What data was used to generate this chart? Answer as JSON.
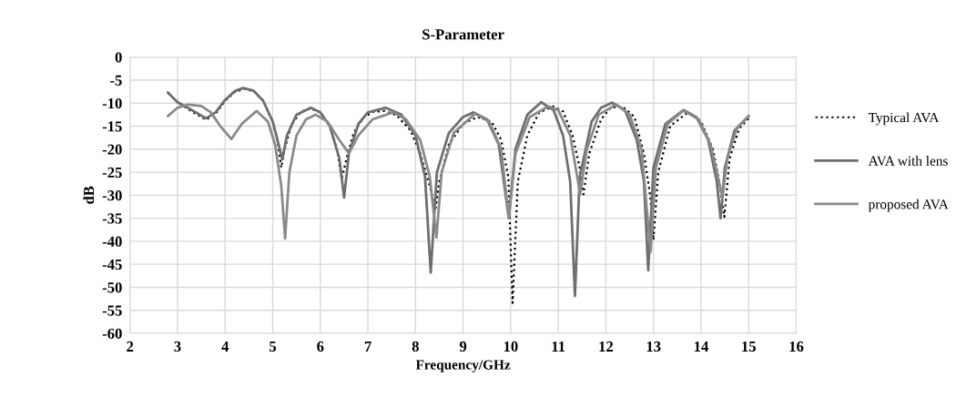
{
  "chart_data": {
    "type": "line",
    "title": "S-Parameter",
    "xlabel": "Frequency/GHz",
    "ylabel": "dB",
    "xlim": [
      2,
      16
    ],
    "xticks": [
      2,
      3,
      4,
      5,
      6,
      7,
      8,
      9,
      10,
      11,
      12,
      13,
      14,
      15,
      16
    ],
    "ylim": [
      -60,
      0
    ],
    "yticks": [
      -60,
      -55,
      -50,
      -45,
      -40,
      -35,
      -30,
      -25,
      -20,
      -15,
      -10,
      -5,
      0
    ],
    "grid": true,
    "legend": "right",
    "marker": "none",
    "series": [
      {
        "name": "Typical AVA",
        "color": "#000000",
        "line_style": "dotted",
        "x": [
          2.8,
          3.0,
          3.3,
          3.6,
          3.8,
          4.0,
          4.2,
          4.4,
          4.6,
          4.8,
          5.0,
          5.1,
          5.18,
          5.25,
          5.4,
          5.6,
          5.8,
          6.0,
          6.2,
          6.35,
          6.45,
          6.55,
          6.7,
          6.9,
          7.1,
          7.35,
          7.6,
          7.9,
          8.1,
          8.3,
          8.42,
          8.5,
          8.7,
          9.0,
          9.3,
          9.6,
          9.8,
          9.95,
          10.04,
          10.15,
          10.35,
          10.6,
          10.9,
          11.1,
          11.3,
          11.45,
          11.53,
          11.65,
          11.9,
          12.1,
          12.35,
          12.6,
          12.8,
          12.93,
          13.0,
          13.1,
          13.35,
          13.72,
          14.0,
          14.25,
          14.4,
          14.49,
          14.6,
          14.8,
          15.0
        ],
        "values": [
          -7.8,
          -9.8,
          -11.8,
          -13.6,
          -12.3,
          -9.5,
          -7.6,
          -6.9,
          -7.4,
          -9.5,
          -14,
          -18,
          -24,
          -20,
          -14.5,
          -11.8,
          -11.2,
          -12,
          -15,
          -20,
          -26.5,
          -22,
          -16.5,
          -13.2,
          -11.9,
          -11.7,
          -12.6,
          -16,
          -21,
          -28,
          -33,
          -27,
          -19,
          -14.5,
          -13,
          -14,
          -18,
          -26,
          -53.4,
          -27,
          -17,
          -12,
          -10.7,
          -11.8,
          -17,
          -24,
          -29.8,
          -21,
          -13.5,
          -11,
          -10.7,
          -13,
          -21,
          -30,
          -39.7,
          -25,
          -15,
          -12,
          -14,
          -20,
          -28,
          -34.7,
          -22,
          -15.5,
          -13.3
        ]
      },
      {
        "name": "AVA with lens",
        "color": "#6e6e6e",
        "line_style": "solid",
        "x": [
          2.8,
          3.0,
          3.3,
          3.6,
          3.8,
          4.0,
          4.2,
          4.38,
          4.6,
          4.8,
          5.0,
          5.1,
          5.2,
          5.3,
          5.5,
          5.8,
          6.0,
          6.2,
          6.4,
          6.5,
          6.6,
          6.8,
          7.0,
          7.37,
          7.7,
          8.0,
          8.2,
          8.32,
          8.45,
          8.7,
          9.0,
          9.22,
          9.5,
          9.75,
          9.96,
          10.1,
          10.35,
          10.64,
          10.9,
          11.1,
          11.25,
          11.35,
          11.45,
          11.7,
          11.9,
          12.13,
          12.4,
          12.65,
          12.8,
          12.89,
          13.0,
          13.25,
          13.63,
          13.9,
          14.15,
          14.33,
          14.41,
          14.5,
          14.7,
          15.0
        ],
        "values": [
          -7.7,
          -9.8,
          -11.5,
          -13.3,
          -12,
          -9.3,
          -7.4,
          -6.7,
          -7.3,
          -9.5,
          -14,
          -18,
          -22.2,
          -17,
          -12.5,
          -11,
          -12,
          -15,
          -22,
          -30.5,
          -21,
          -14.5,
          -12,
          -11,
          -12.5,
          -17,
          -26,
          -46.8,
          -25,
          -16.5,
          -13,
          -12,
          -13.5,
          -19,
          -35,
          -20,
          -12.5,
          -9.8,
          -11.5,
          -17,
          -27,
          -51.9,
          -26,
          -14,
          -11,
          -9.9,
          -11.5,
          -18,
          -27,
          -46.3,
          -24,
          -14.5,
          -11.5,
          -13,
          -18,
          -27,
          -35,
          -24,
          -16,
          -12.8
        ]
      },
      {
        "name": "proposed AVA",
        "color": "#8a8a8a",
        "line_style": "solid",
        "x": [
          2.8,
          3.0,
          3.22,
          3.5,
          3.7,
          3.9,
          4.13,
          4.35,
          4.66,
          4.9,
          5.05,
          5.18,
          5.26,
          5.35,
          5.5,
          5.7,
          5.9,
          6.15,
          6.4,
          6.6,
          6.8,
          7.1,
          7.53,
          7.8,
          8.1,
          8.3,
          8.44,
          8.55,
          8.8,
          9.25,
          9.55,
          9.8,
          9.96,
          10.1,
          10.4,
          10.79,
          11.0,
          11.25,
          11.46,
          11.6,
          11.85,
          12.22,
          12.5,
          12.75,
          12.94,
          13.05,
          13.3,
          13.63,
          13.95,
          14.2,
          14.45,
          14.55,
          14.75,
          15.0
        ],
        "values": [
          -12.8,
          -11,
          -10.3,
          -10.6,
          -12,
          -15,
          -17.8,
          -14.5,
          -11.7,
          -14,
          -19,
          -28,
          -39.4,
          -25,
          -17,
          -13.5,
          -12.5,
          -14,
          -18,
          -20.9,
          -17,
          -13.5,
          -12,
          -13.5,
          -18,
          -26,
          -39.2,
          -25,
          -16.5,
          -12.3,
          -14,
          -20,
          -35,
          -21,
          -13,
          -10.7,
          -11.5,
          -17,
          -29.8,
          -20,
          -12.5,
          -10.3,
          -12.5,
          -20,
          -42.3,
          -24,
          -14.5,
          -11.6,
          -13.5,
          -19,
          -30.5,
          -22,
          -15.5,
          -12.8
        ]
      }
    ]
  }
}
